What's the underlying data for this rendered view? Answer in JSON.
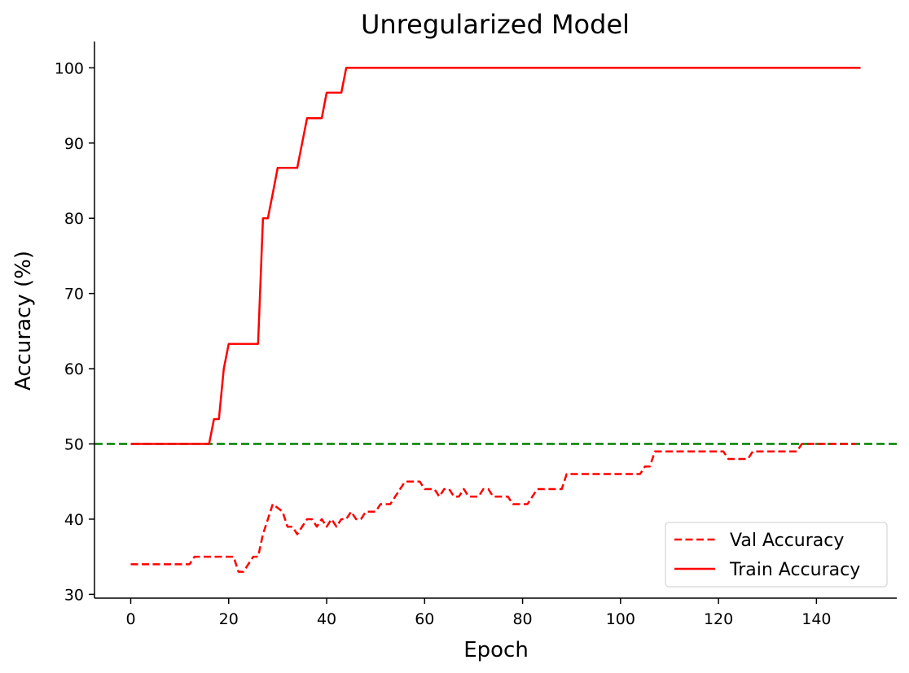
{
  "chart_data": {
    "type": "line",
    "title": "Unregularized Model",
    "xlabel": "Epoch",
    "ylabel": "Accuracy (%)",
    "xlim": [
      -7.4,
      156.4
    ],
    "ylim": [
      29.5,
      103.5
    ],
    "xticks": [
      0,
      20,
      40,
      60,
      80,
      100,
      120,
      140
    ],
    "yticks": [
      30,
      40,
      50,
      60,
      70,
      80,
      90,
      100
    ],
    "grid": false,
    "legend_position": "lower right",
    "reference_line": {
      "y": 50,
      "color": "#008000",
      "style": "dashed"
    },
    "series": [
      {
        "name": "Val Accuracy",
        "color": "#ff0000",
        "style": "dashed",
        "points": [
          [
            0,
            34
          ],
          [
            12,
            34
          ],
          [
            13,
            35
          ],
          [
            21,
            35
          ],
          [
            22,
            33
          ],
          [
            23,
            33
          ],
          [
            25,
            35
          ],
          [
            26,
            35
          ],
          [
            27,
            38
          ],
          [
            28,
            40
          ],
          [
            29,
            42
          ],
          [
            30,
            41.5
          ],
          [
            31,
            41
          ],
          [
            32,
            39
          ],
          [
            33,
            39
          ],
          [
            34,
            38
          ],
          [
            35,
            39
          ],
          [
            36,
            40
          ],
          [
            37,
            40
          ],
          [
            38,
            39
          ],
          [
            39,
            40
          ],
          [
            40,
            39
          ],
          [
            41,
            40
          ],
          [
            42,
            39
          ],
          [
            43,
            40
          ],
          [
            44,
            40
          ],
          [
            45,
            41
          ],
          [
            46,
            40
          ],
          [
            47,
            40
          ],
          [
            48,
            41
          ],
          [
            50,
            41
          ],
          [
            51,
            42
          ],
          [
            53,
            42
          ],
          [
            54,
            43
          ],
          [
            56,
            45
          ],
          [
            59,
            45
          ],
          [
            60,
            44
          ],
          [
            62,
            44
          ],
          [
            63,
            43
          ],
          [
            64,
            44
          ],
          [
            65,
            44
          ],
          [
            66,
            43
          ],
          [
            67,
            43
          ],
          [
            68,
            44
          ],
          [
            69,
            43
          ],
          [
            71,
            43
          ],
          [
            72,
            44
          ],
          [
            73,
            44
          ],
          [
            74,
            43
          ],
          [
            77,
            43
          ],
          [
            78,
            42
          ],
          [
            81,
            42
          ],
          [
            83,
            44
          ],
          [
            88,
            44
          ],
          [
            89,
            46
          ],
          [
            104,
            46
          ],
          [
            105,
            47
          ],
          [
            106,
            47
          ],
          [
            107,
            49
          ],
          [
            121,
            49
          ],
          [
            122,
            48
          ],
          [
            126,
            48
          ],
          [
            127,
            49
          ],
          [
            136,
            49
          ],
          [
            137,
            50
          ],
          [
            148,
            50
          ]
        ]
      },
      {
        "name": "Train Accuracy",
        "color": "#ff0000",
        "style": "solid",
        "points": [
          [
            0,
            50
          ],
          [
            16,
            50
          ],
          [
            17,
            53.3
          ],
          [
            18,
            53.3
          ],
          [
            19,
            60
          ],
          [
            20,
            63.3
          ],
          [
            26,
            63.3
          ],
          [
            27,
            80
          ],
          [
            28,
            80
          ],
          [
            29,
            83.3
          ],
          [
            30,
            86.7
          ],
          [
            34,
            86.7
          ],
          [
            35,
            90
          ],
          [
            36,
            93.3
          ],
          [
            39,
            93.3
          ],
          [
            40,
            96.7
          ],
          [
            43,
            96.7
          ],
          [
            44,
            100
          ],
          [
            149,
            100
          ]
        ]
      }
    ]
  }
}
